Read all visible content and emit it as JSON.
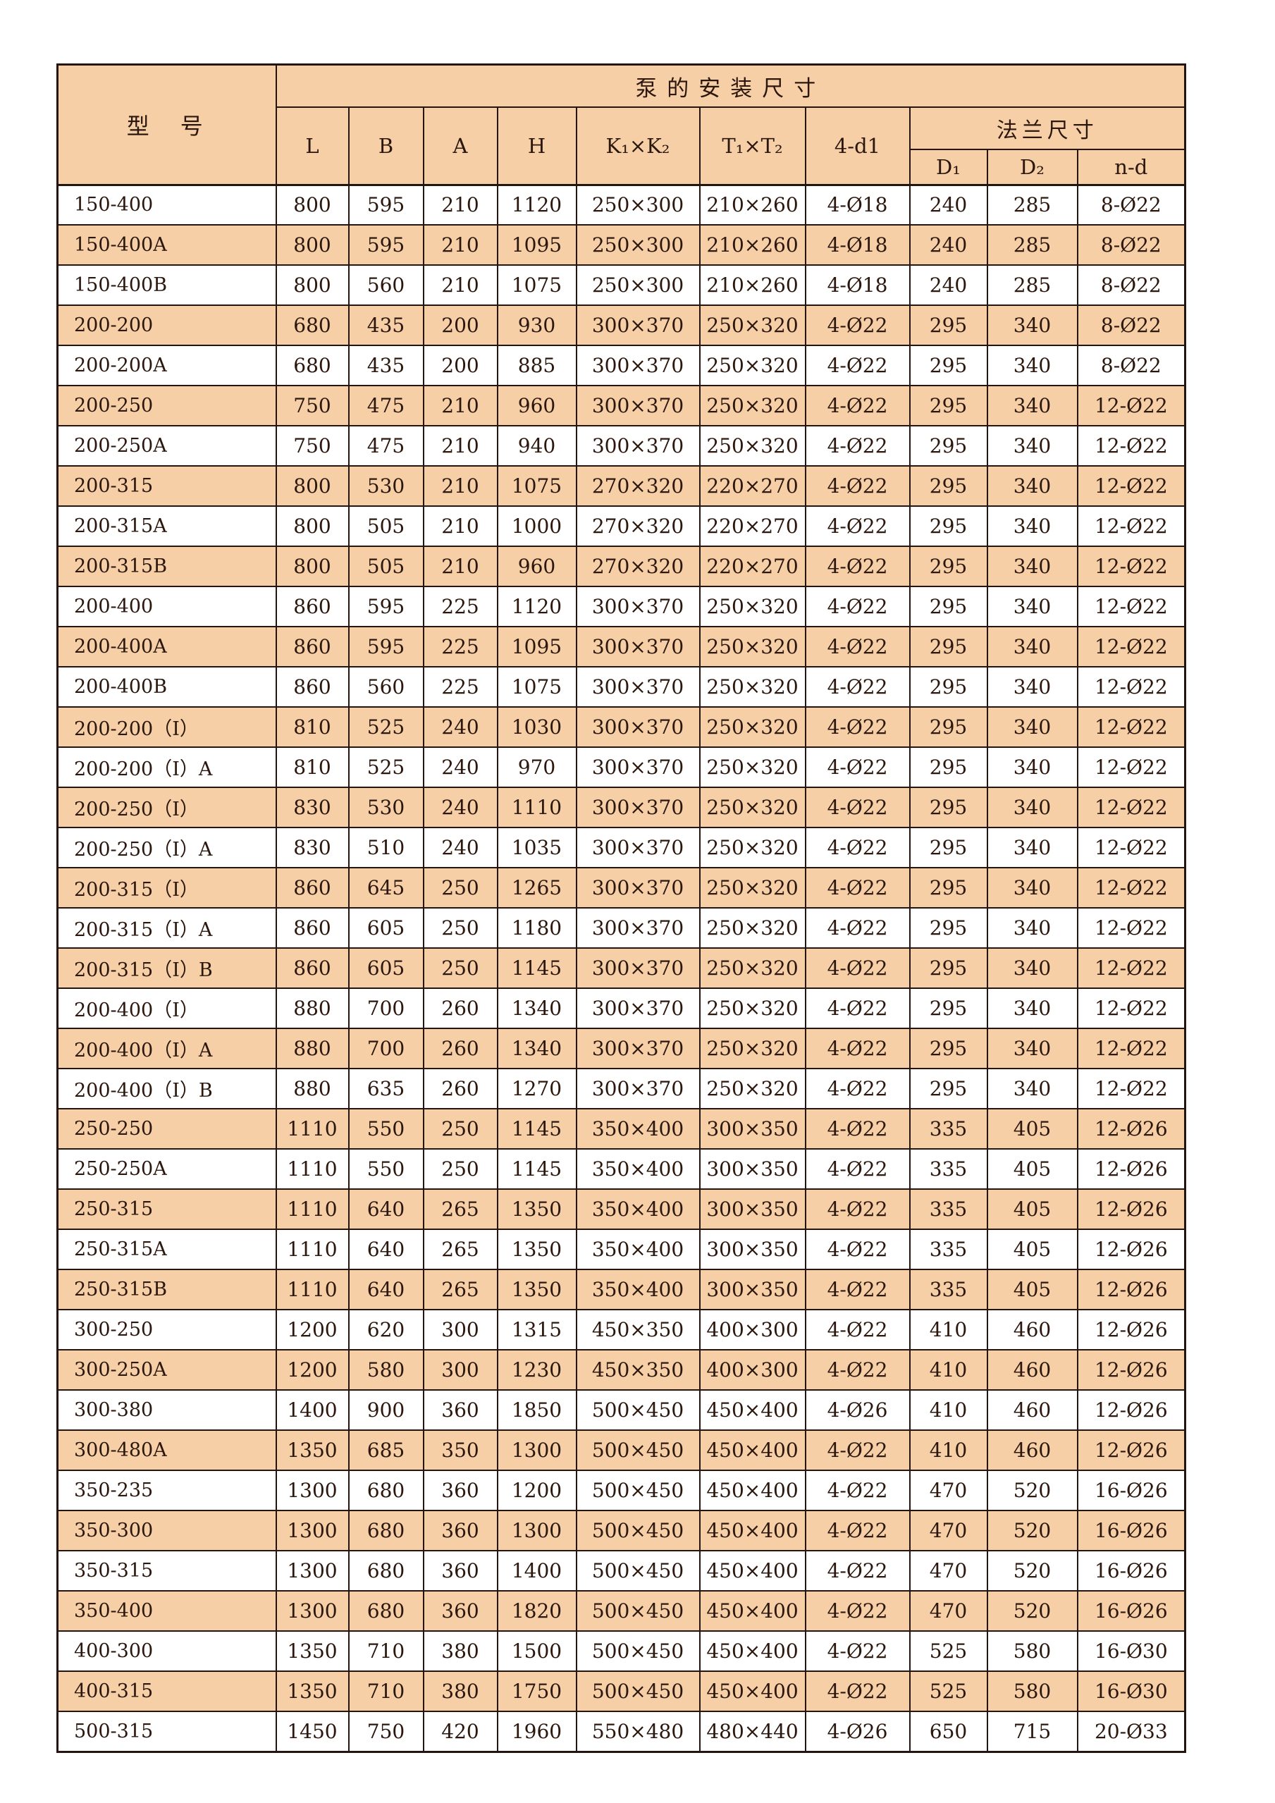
{
  "colors": {
    "row_fill": "#f6cfa6",
    "border": "#241510",
    "text": "#2b170d",
    "page_background": "#ffffff"
  },
  "table": {
    "model_header": "型　号",
    "install_header": "泵的安装尺寸",
    "flange_header": "法兰尺寸",
    "col_headers": [
      "L",
      "B",
      "A",
      "H",
      "K₁×K₂",
      "T₁×T₂",
      "4-d1"
    ],
    "flange_sub_headers": [
      "D₁",
      "D₂",
      "n-d"
    ],
    "rows": [
      {
        "model": "150-400",
        "values": [
          "800",
          "595",
          "210",
          "1120",
          "250×300",
          "210×260",
          "4-Ø18",
          "240",
          "285",
          "8-Ø22"
        ]
      },
      {
        "model": "150-400A",
        "values": [
          "800",
          "595",
          "210",
          "1095",
          "250×300",
          "210×260",
          "4-Ø18",
          "240",
          "285",
          "8-Ø22"
        ]
      },
      {
        "model": "150-400B",
        "values": [
          "800",
          "560",
          "210",
          "1075",
          "250×300",
          "210×260",
          "4-Ø18",
          "240",
          "285",
          "8-Ø22"
        ]
      },
      {
        "model": "200-200",
        "values": [
          "680",
          "435",
          "200",
          "930",
          "300×370",
          "250×320",
          "4-Ø22",
          "295",
          "340",
          "8-Ø22"
        ]
      },
      {
        "model": "200-200A",
        "values": [
          "680",
          "435",
          "200",
          "885",
          "300×370",
          "250×320",
          "4-Ø22",
          "295",
          "340",
          "8-Ø22"
        ]
      },
      {
        "model": "200-250",
        "values": [
          "750",
          "475",
          "210",
          "960",
          "300×370",
          "250×320",
          "4-Ø22",
          "295",
          "340",
          "12-Ø22"
        ]
      },
      {
        "model": "200-250A",
        "values": [
          "750",
          "475",
          "210",
          "940",
          "300×370",
          "250×320",
          "4-Ø22",
          "295",
          "340",
          "12-Ø22"
        ]
      },
      {
        "model": "200-315",
        "values": [
          "800",
          "530",
          "210",
          "1075",
          "270×320",
          "220×270",
          "4-Ø22",
          "295",
          "340",
          "12-Ø22"
        ]
      },
      {
        "model": "200-315A",
        "values": [
          "800",
          "505",
          "210",
          "1000",
          "270×320",
          "220×270",
          "4-Ø22",
          "295",
          "340",
          "12-Ø22"
        ]
      },
      {
        "model": "200-315B",
        "values": [
          "800",
          "505",
          "210",
          "960",
          "270×320",
          "220×270",
          "4-Ø22",
          "295",
          "340",
          "12-Ø22"
        ]
      },
      {
        "model": "200-400",
        "values": [
          "860",
          "595",
          "225",
          "1120",
          "300×370",
          "250×320",
          "4-Ø22",
          "295",
          "340",
          "12-Ø22"
        ]
      },
      {
        "model": "200-400A",
        "values": [
          "860",
          "595",
          "225",
          "1095",
          "300×370",
          "250×320",
          "4-Ø22",
          "295",
          "340",
          "12-Ø22"
        ]
      },
      {
        "model": "200-400B",
        "values": [
          "860",
          "560",
          "225",
          "1075",
          "300×370",
          "250×320",
          "4-Ø22",
          "295",
          "340",
          "12-Ø22"
        ]
      },
      {
        "model": "200-200（I）",
        "values": [
          "810",
          "525",
          "240",
          "1030",
          "300×370",
          "250×320",
          "4-Ø22",
          "295",
          "340",
          "12-Ø22"
        ]
      },
      {
        "model": "200-200（I）A",
        "values": [
          "810",
          "525",
          "240",
          "970",
          "300×370",
          "250×320",
          "4-Ø22",
          "295",
          "340",
          "12-Ø22"
        ]
      },
      {
        "model": "200-250（I）",
        "values": [
          "830",
          "530",
          "240",
          "1110",
          "300×370",
          "250×320",
          "4-Ø22",
          "295",
          "340",
          "12-Ø22"
        ]
      },
      {
        "model": "200-250（I）A",
        "values": [
          "830",
          "510",
          "240",
          "1035",
          "300×370",
          "250×320",
          "4-Ø22",
          "295",
          "340",
          "12-Ø22"
        ]
      },
      {
        "model": "200-315（I）",
        "values": [
          "860",
          "645",
          "250",
          "1265",
          "300×370",
          "250×320",
          "4-Ø22",
          "295",
          "340",
          "12-Ø22"
        ]
      },
      {
        "model": "200-315（I）A",
        "values": [
          "860",
          "605",
          "250",
          "1180",
          "300×370",
          "250×320",
          "4-Ø22",
          "295",
          "340",
          "12-Ø22"
        ]
      },
      {
        "model": "200-315（I）B",
        "values": [
          "860",
          "605",
          "250",
          "1145",
          "300×370",
          "250×320",
          "4-Ø22",
          "295",
          "340",
          "12-Ø22"
        ]
      },
      {
        "model": "200-400（I）",
        "values": [
          "880",
          "700",
          "260",
          "1340",
          "300×370",
          "250×320",
          "4-Ø22",
          "295",
          "340",
          "12-Ø22"
        ]
      },
      {
        "model": "200-400（I）A",
        "values": [
          "880",
          "700",
          "260",
          "1340",
          "300×370",
          "250×320",
          "4-Ø22",
          "295",
          "340",
          "12-Ø22"
        ]
      },
      {
        "model": "200-400（I）B",
        "values": [
          "880",
          "635",
          "260",
          "1270",
          "300×370",
          "250×320",
          "4-Ø22",
          "295",
          "340",
          "12-Ø22"
        ]
      },
      {
        "model": "250-250",
        "values": [
          "1110",
          "550",
          "250",
          "1145",
          "350×400",
          "300×350",
          "4-Ø22",
          "335",
          "405",
          "12-Ø26"
        ]
      },
      {
        "model": "250-250A",
        "values": [
          "1110",
          "550",
          "250",
          "1145",
          "350×400",
          "300×350",
          "4-Ø22",
          "335",
          "405",
          "12-Ø26"
        ]
      },
      {
        "model": "250-315",
        "values": [
          "1110",
          "640",
          "265",
          "1350",
          "350×400",
          "300×350",
          "4-Ø22",
          "335",
          "405",
          "12-Ø26"
        ]
      },
      {
        "model": "250-315A",
        "values": [
          "1110",
          "640",
          "265",
          "1350",
          "350×400",
          "300×350",
          "4-Ø22",
          "335",
          "405",
          "12-Ø26"
        ]
      },
      {
        "model": "250-315B",
        "values": [
          "1110",
          "640",
          "265",
          "1350",
          "350×400",
          "300×350",
          "4-Ø22",
          "335",
          "405",
          "12-Ø26"
        ]
      },
      {
        "model": "300-250",
        "values": [
          "1200",
          "620",
          "300",
          "1315",
          "450×350",
          "400×300",
          "4-Ø22",
          "410",
          "460",
          "12-Ø26"
        ]
      },
      {
        "model": "300-250A",
        "values": [
          "1200",
          "580",
          "300",
          "1230",
          "450×350",
          "400×300",
          "4-Ø22",
          "410",
          "460",
          "12-Ø26"
        ]
      },
      {
        "model": "300-380",
        "values": [
          "1400",
          "900",
          "360",
          "1850",
          "500×450",
          "450×400",
          "4-Ø26",
          "410",
          "460",
          "12-Ø26"
        ]
      },
      {
        "model": "300-480A",
        "values": [
          "1350",
          "685",
          "350",
          "1300",
          "500×450",
          "450×400",
          "4-Ø22",
          "410",
          "460",
          "12-Ø26"
        ]
      },
      {
        "model": "350-235",
        "values": [
          "1300",
          "680",
          "360",
          "1200",
          "500×450",
          "450×400",
          "4-Ø22",
          "470",
          "520",
          "16-Ø26"
        ]
      },
      {
        "model": "350-300",
        "values": [
          "1300",
          "680",
          "360",
          "1300",
          "500×450",
          "450×400",
          "4-Ø22",
          "470",
          "520",
          "16-Ø26"
        ]
      },
      {
        "model": "350-315",
        "values": [
          "1300",
          "680",
          "360",
          "1400",
          "500×450",
          "450×400",
          "4-Ø22",
          "470",
          "520",
          "16-Ø26"
        ]
      },
      {
        "model": "350-400",
        "values": [
          "1300",
          "680",
          "360",
          "1820",
          "500×450",
          "450×400",
          "4-Ø22",
          "470",
          "520",
          "16-Ø26"
        ]
      },
      {
        "model": "400-300",
        "values": [
          "1350",
          "710",
          "380",
          "1500",
          "500×450",
          "450×400",
          "4-Ø22",
          "525",
          "580",
          "16-Ø30"
        ]
      },
      {
        "model": "400-315",
        "values": [
          "1350",
          "710",
          "380",
          "1750",
          "500×450",
          "450×400",
          "4-Ø22",
          "525",
          "580",
          "16-Ø30"
        ]
      },
      {
        "model": "500-315",
        "values": [
          "1450",
          "750",
          "420",
          "1960",
          "550×480",
          "480×440",
          "4-Ø26",
          "650",
          "715",
          "20-Ø33"
        ]
      }
    ]
  }
}
